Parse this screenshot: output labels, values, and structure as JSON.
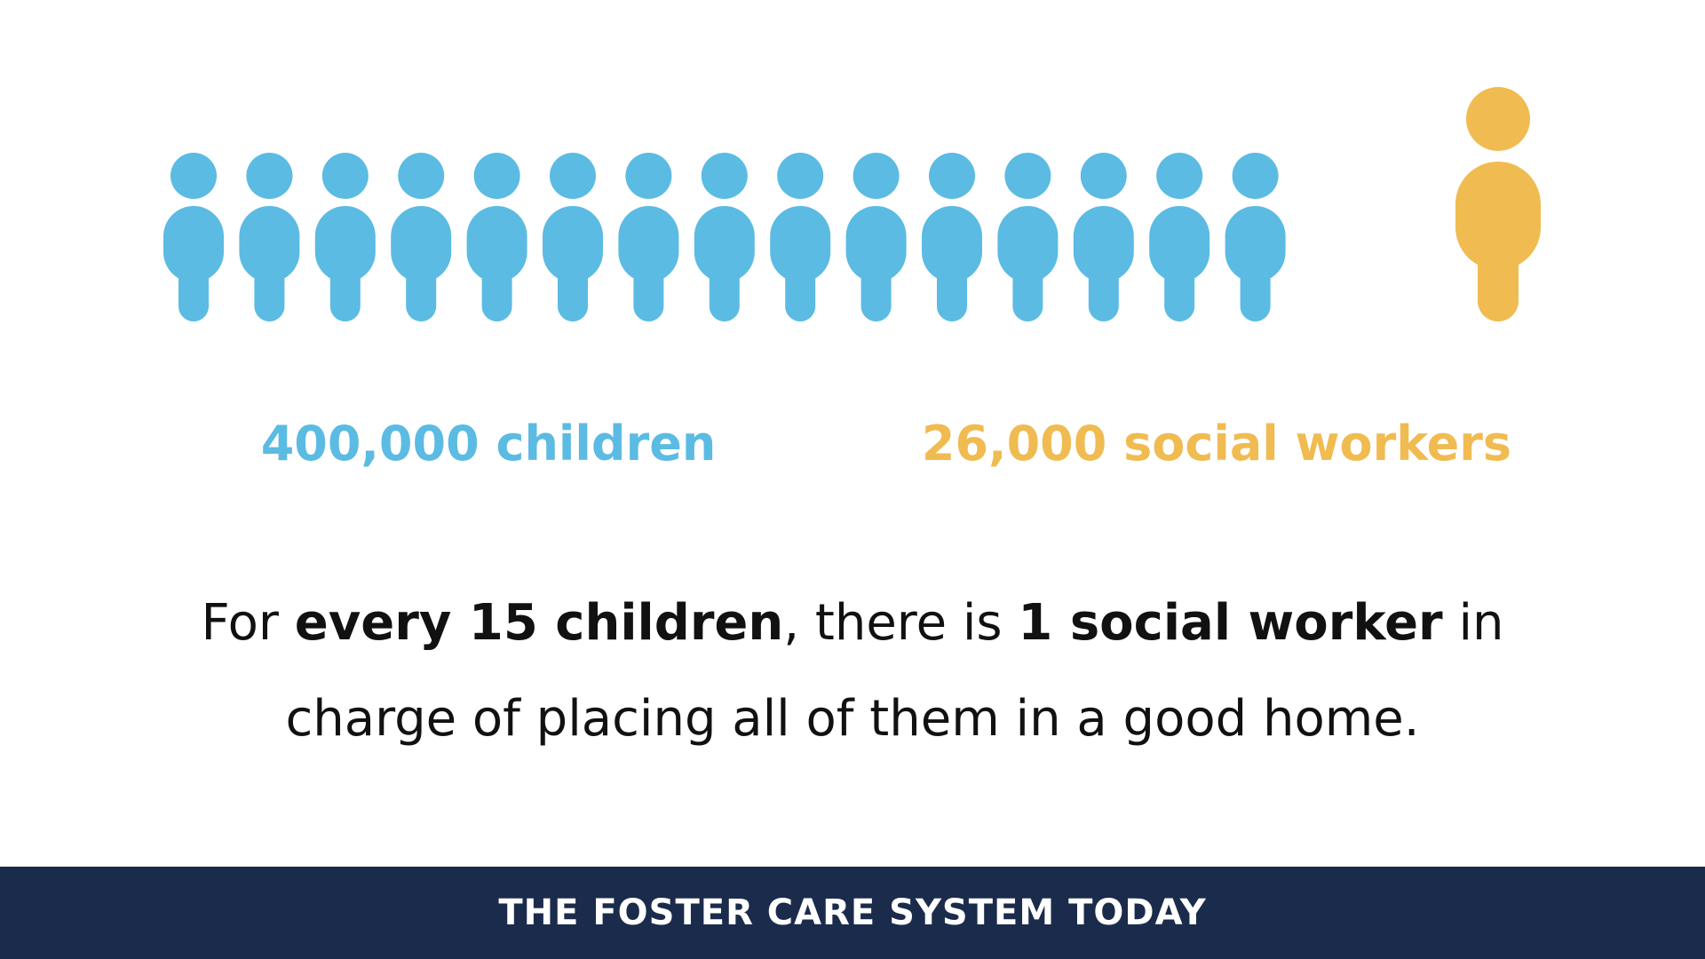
{
  "colors": {
    "child_blue": "#5bbbe3",
    "worker_yellow": "#f0bb50",
    "footer_navy": "#1b2b4b",
    "text_dark": "#111111",
    "background": "#ffffff"
  },
  "icons": {
    "child_icon": "person-icon",
    "child_icon_count": 15,
    "worker_icon": "person-icon",
    "worker_icon_count": 1
  },
  "stats": {
    "children": "400,000 children",
    "social_workers": "26,000 social workers"
  },
  "statement": {
    "part1": "For ",
    "bold1": "every 15 children",
    "part2": ", there is ",
    "bold2": "1 social worker",
    "part3": " in charge of placing all of them in a good home."
  },
  "footer": {
    "title": "THE FOSTER CARE SYSTEM TODAY"
  }
}
